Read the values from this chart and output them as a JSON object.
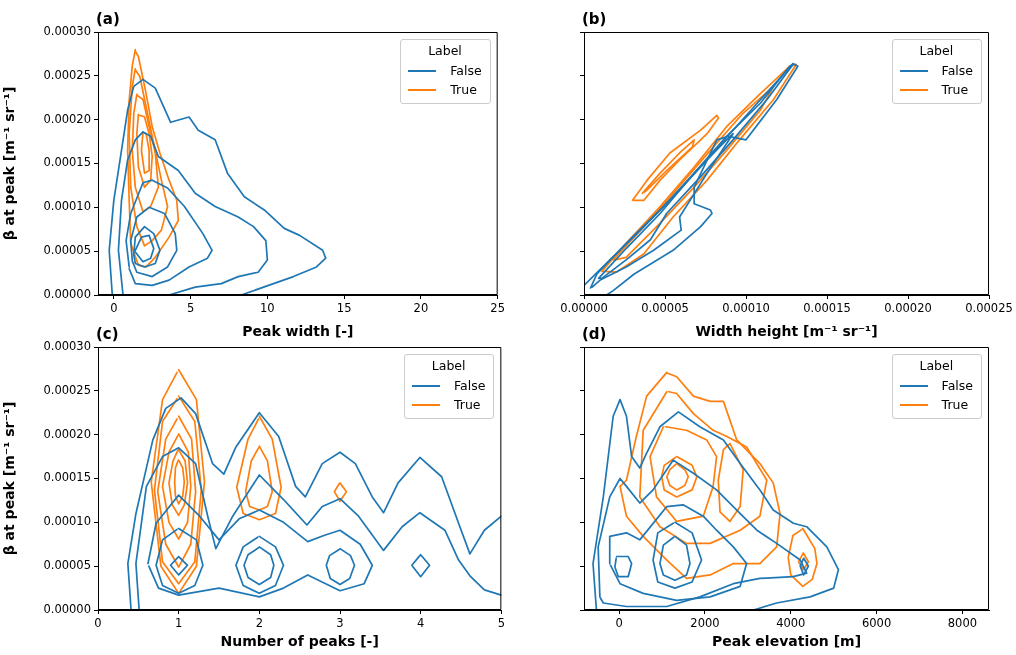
{
  "chart_data": [
    {
      "type": "line",
      "title": "(a)",
      "xlabel": "Peak width [-]",
      "ylabel": "β at peak [m⁻¹ sr⁻¹]",
      "legend": "top right",
      "legend_title": "Label",
      "marker": "none",
      "xlim": [
        -1.03,
        25
      ],
      "ylim": [
        0,
        0.0003
      ],
      "xticks": [
        0,
        5,
        10,
        15,
        20,
        25
      ],
      "yticks": [
        {
          "value": 0,
          "label": "0.00000"
        },
        {
          "value": 5e-05,
          "label": "0.00005"
        },
        {
          "value": 0.0001,
          "label": "0.00010"
        },
        {
          "value": 0.00015,
          "label": "0.00015"
        },
        {
          "value": 0.0002,
          "label": "0.00020"
        },
        {
          "value": 0.00025,
          "label": "0.00025"
        },
        {
          "value": 0.0003,
          "label": "0.00030"
        }
      ],
      "series": [
        {
          "name": "False",
          "color": "#1f77b4",
          "x": [
            -0.1,
            -0.3,
            0.0,
            0.5,
            0.9,
            1.3,
            1.9,
            2.7,
            3.7,
            4.9,
            5.5,
            6.6,
            7.4,
            8.5,
            9.8,
            11.1,
            12.1,
            13.6,
            13.8,
            13.2,
            11.7,
            10.4,
            8.3
          ],
          "values": [
            0,
            5.1e-05,
            0.000108,
            0.000165,
            0.000211,
            0.000238,
            0.000246,
            0.000236,
            0.000197,
            0.000203,
            0.000188,
            0.000177,
            0.000139,
            0.000112,
            9.7e-05,
            7.6e-05,
            6.8e-05,
            5.1e-05,
            4.2e-05,
            3.2e-05,
            2.1e-05,
            1.3e-05,
            0
          ]
        },
        {
          "color": "#1f77b4",
          "x": [
            0.6,
            0.3,
            0.5,
            0.9,
            1.4,
            1.9,
            2.4,
            2.9,
            4.2,
            5.3,
            6.6,
            8.1,
            9.1,
            9.9,
            10.0,
            9.4,
            8.1,
            7.0,
            5.3,
            3.6
          ],
          "values": [
            0,
            5.1e-05,
            0.000108,
            0.000154,
            0.000177,
            0.000186,
            0.000181,
            0.000158,
            0.000142,
            0.000116,
            0.000101,
            8.9e-05,
            7.8e-05,
            6.2e-05,
            4e-05,
            2.6e-05,
            2.1e-05,
            1.3e-05,
            9e-06,
            0
          ]
        },
        {
          "color": "#1f77b4",
          "x": [
            1.0,
            0.8,
            1.1,
            1.9,
            2.5,
            3.5,
            4.6,
            5.8,
            6.4,
            6.1,
            4.9,
            3.6,
            2.5,
            1.4,
            1.0
          ],
          "values": [
            3.2e-05,
            6.2e-05,
            9.3e-05,
            0.000128,
            0.000131,
            0.000122,
            0.000101,
            7e-05,
            5.1e-05,
            4.2e-05,
            3.2e-05,
            1.7e-05,
            1.1e-05,
            1.3e-05,
            3e-05
          ]
        },
        {
          "color": "#1f77b4",
          "x": [
            1.2,
            1.1,
            1.5,
            2.3,
            3.3,
            4.0,
            4.1,
            3.5,
            2.5,
            1.5,
            1.2
          ],
          "values": [
            4e-05,
            6.2e-05,
            8.9e-05,
            0.0001,
            9.3e-05,
            7e-05,
            5.1e-05,
            3.2e-05,
            2.1e-05,
            2.6e-05,
            3.9e-05
          ]
        },
        {
          "color": "#1f77b4",
          "x": [
            1.3,
            1.4,
            2.0,
            2.6,
            3.0,
            2.7,
            2.0,
            1.4,
            1.3
          ],
          "values": [
            4.7e-05,
            6.6e-05,
            7.8e-05,
            7e-05,
            5.1e-05,
            3.6e-05,
            3.2e-05,
            3.6e-05,
            4.6e-05
          ]
        },
        {
          "color": "#1f77b4",
          "x": [
            1.4,
            1.8,
            2.3,
            2.6,
            2.4,
            1.9,
            1.4
          ],
          "values": [
            5.1e-05,
            6.6e-05,
            6.8e-05,
            5.3e-05,
            4.2e-05,
            3.8e-05,
            4.9e-05
          ]
        },
        {
          "name": "True",
          "color": "#ff7f0e",
          "x": [
            1.4,
            1.2,
            1.0,
            0.9,
            1.0,
            1.1,
            1.6,
            2.1,
            2.7,
            3.6,
            4.2,
            4.1,
            3.6,
            3.0,
            2.5,
            2.1,
            1.6,
            1.4
          ],
          "values": [
            0.00028,
            0.000261,
            0.000222,
            0.000165,
            0.000108,
            5.9e-05,
            3.4e-05,
            3.2e-05,
            4.3e-05,
            6.6e-05,
            8.5e-05,
            0.000108,
            0.000131,
            0.000162,
            0.000192,
            0.00023,
            0.000272,
            0.000278
          ]
        },
        {
          "color": "#ff7f0e",
          "x": [
            1.4,
            1.2,
            1.0,
            1.1,
            1.5,
            2.0,
            2.5,
            3.1,
            3.5,
            3.1,
            2.6,
            2.1,
            1.7,
            1.4
          ],
          "values": [
            0.000258,
            0.000238,
            0.000184,
            0.000123,
            7.8e-05,
            5.6e-05,
            6.2e-05,
            7.4e-05,
            0.000101,
            0.000131,
            0.000173,
            0.000215,
            0.000249,
            0.000257
          ]
        },
        {
          "color": "#ff7f0e",
          "x": [
            1.5,
            1.3,
            1.2,
            1.4,
            1.9,
            2.4,
            2.9,
            2.7,
            2.3,
            1.9,
            1.5
          ],
          "values": [
            0.000229,
            0.000207,
            0.000165,
            0.000123,
            9.5e-05,
            0.000101,
            0.000123,
            0.000162,
            0.000192,
            0.000223,
            0.000228
          ]
        },
        {
          "color": "#ff7f0e",
          "x": [
            1.6,
            1.5,
            1.6,
            2.0,
            2.4,
            2.5,
            2.3,
            2.0,
            1.7
          ],
          "values": [
            0.000206,
            0.000184,
            0.000146,
            0.000123,
            0.000131,
            0.000158,
            0.000184,
            0.000203,
            0.000205
          ]
        },
        {
          "color": "#ff7f0e",
          "x": [
            1.9,
            1.8,
            2.0,
            2.3,
            2.3,
            2.1,
            2.0
          ],
          "values": [
            0.000186,
            0.000165,
            0.000139,
            0.000142,
            0.000165,
            0.000184,
            0.000185
          ]
        }
      ]
    },
    {
      "type": "line",
      "title": "(b)",
      "xlabel": "Width height [m⁻¹ sr⁻¹]",
      "legend": "top right",
      "legend_title": "Label",
      "marker": "none",
      "tick_labels": "x",
      "xlim": [
        0,
        0.00025
      ],
      "ylim": [
        0,
        0.0003
      ],
      "xticks": [
        {
          "value": 0,
          "label": "0.00000"
        },
        {
          "value": 5e-05,
          "label": "0.00005"
        },
        {
          "value": 0.0001,
          "label": "0.00010"
        },
        {
          "value": 0.00015,
          "label": "0.00015"
        },
        {
          "value": 0.0002,
          "label": "0.00020"
        },
        {
          "value": 0.00025,
          "label": "0.00025"
        }
      ],
      "yticks": [
        0,
        5e-05,
        0.0001,
        0.00015,
        0.0002,
        0.00025,
        0.0003
      ],
      "series": [
        {
          "name": "False",
          "color": "#1f77b4",
          "x": [
            0,
            1.6e-05,
            3.7e-05,
            5.3e-05,
            7.2e-05,
            9e-05,
            0.000109,
            0.000129,
            0.000132,
            0.000119,
            0.0001,
            8.9e-05,
            8.2e-05,
            6.8e-05,
            6.8e-05,
            7.8e-05,
            7.9e-05,
            7.2e-05,
            5.5e-05,
            3.1e-05,
            1.8e-05,
            1.4e-05
          ],
          "values": [
            1.1e-05,
            4e-05,
            7.8e-05,
            0.000108,
            0.000146,
            0.000184,
            0.000223,
            0.000264,
            0.000261,
            0.000223,
            0.000177,
            0.000181,
            0.000177,
            0.000123,
            0.000104,
            9.7e-05,
            9.3e-05,
            7.8e-05,
            5.1e-05,
            2.4e-05,
            5e-06,
            0
          ]
        },
        {
          "color": "#1f77b4",
          "x": [
            4e-06,
            8e-06,
            2.6e-05,
            4.7e-05,
            6.8e-05,
            8.8e-05,
            9.2e-05,
            7.6e-05,
            5.9e-05,
            6e-05,
            4.3e-05,
            2.6e-05,
            1e-05,
            5e-06
          ],
          "values": [
            8e-06,
            2.4e-05,
            5.9e-05,
            9.7e-05,
            0.000139,
            0.000177,
            0.000184,
            0.000139,
            8.9e-05,
            7.4e-05,
            5.1e-05,
            3.2e-05,
            1.7e-05,
            9e-06
          ]
        },
        {
          "color": "#1f77b4",
          "x": [
            9e-06,
            2.6e-05,
            4.7e-05,
            6.8e-05,
            8.8e-05,
            0.000109,
            0.000127,
            0.000129,
            0.000113,
            9.2e-05,
            7.2e-05,
            5.1e-05,
            4.1e-05,
            2.6e-05,
            1.1e-05,
            1e-05
          ],
          "values": [
            1.9e-05,
            5.3e-05,
            9.3e-05,
            0.000139,
            0.000181,
            0.000219,
            0.000261,
            0.000263,
            0.000223,
            0.000177,
            0.000135,
            9.3e-05,
            6.3e-05,
            4e-05,
            1.9e-05,
            1.9e-05
          ]
        },
        {
          "name": "True",
          "color": "#ff7f0e",
          "x": [
            1.1e-05,
            2.6e-05,
            4.7e-05,
            6.8e-05,
            8.8e-05,
            0.000109,
            0.000127,
            0.000131,
            0.000117,
            9.6e-05,
            7.6e-05,
            5.5e-05,
            3.7e-05,
            2e-05,
            1.2e-05
          ],
          "values": [
            2.7e-05,
            5.9e-05,
            0.000101,
            0.000146,
            0.000192,
            0.00023,
            0.000261,
            0.000263,
            0.000223,
            0.000177,
            0.000131,
            8.9e-05,
            4.7e-05,
            2.6e-05,
            2.7e-05
          ]
        },
        {
          "color": "#ff7f0e",
          "x": [
            1.8e-05,
            3.7e-05,
            5.7e-05,
            7.8e-05,
            9.8e-05,
            0.000117,
            0.000109,
            8.8e-05,
            6.8e-05,
            4.7e-05,
            2.6e-05,
            1.9e-05
          ],
          "values": [
            4e-05,
            7.8e-05,
            0.00012,
            0.000165,
            0.000207,
            0.000238,
            0.000211,
            0.000165,
            0.000123,
            8.2e-05,
            4.3e-05,
            4e-05
          ]
        },
        {
          "color": "#ff7f0e",
          "x": [
            3e-05,
            3.9e-05,
            5.3e-05,
            7.2e-05,
            8.2e-05,
            8.3e-05,
            7.6e-05,
            5.9e-05,
            4.7e-05,
            3.7e-05,
            3.1e-05
          ],
          "values": [
            0.000108,
            0.000131,
            0.000162,
            0.000188,
            0.000205,
            0.000202,
            0.000184,
            0.000154,
            0.000131,
            0.000108,
            0.000108
          ]
        },
        {
          "color": "#ff7f0e",
          "x": [
            3.6e-05,
            4.7e-05,
            5.9e-05,
            6.8e-05,
            6.7e-05,
            5.1e-05,
            3.9e-05,
            3.7e-05
          ],
          "values": [
            0.000116,
            0.000139,
            0.000162,
            0.000177,
            0.000169,
            0.000142,
            0.00012,
            0.000117
          ]
        }
      ]
    },
    {
      "type": "line",
      "title": "(c)",
      "xlabel": "Number of peaks [-]",
      "ylabel": "β at peak [m⁻¹ sr⁻¹]",
      "legend": "top right",
      "legend_title": "Label",
      "marker": "none",
      "xlim": [
        0,
        5
      ],
      "ylim": [
        0,
        0.0003
      ],
      "xticks": [
        0,
        1,
        2,
        3,
        4,
        5
      ],
      "yticks": [
        {
          "value": 0,
          "label": "0.00000"
        },
        {
          "value": 5e-05,
          "label": "0.00005"
        },
        {
          "value": 0.0001,
          "label": "0.00010"
        },
        {
          "value": 0.00015,
          "label": "0.00015"
        },
        {
          "value": 0.0002,
          "label": "0.00020"
        },
        {
          "value": 0.00025,
          "label": "0.00025"
        },
        {
          "value": 0.0003,
          "label": "0.00030"
        }
      ],
      "series": [
        {
          "name": "False",
          "color": "#1f77b4",
          "x": [
            0.41,
            0.37,
            0.47,
            0.68,
            0.84,
            1.03,
            1.21,
            1.42,
            1.56,
            1.71,
            2.0,
            2.24,
            2.45,
            2.57,
            2.78,
            3.0,
            3.19,
            3.4,
            3.54,
            3.72,
            3.99,
            4.26,
            4.47,
            4.61,
            4.79,
            5.0
          ],
          "values": [
            0,
            5.3e-05,
            0.00011,
            0.000194,
            0.00023,
            0.000242,
            0.000224,
            0.000167,
            0.000155,
            0.000186,
            0.000225,
            0.000198,
            0.000141,
            0.000129,
            0.000167,
            0.00018,
            0.000167,
            0.000129,
            0.000111,
            0.000145,
            0.000174,
            0.000152,
            9.9e-05,
            6.4e-05,
            9.1e-05,
            0.000107
          ]
        },
        {
          "color": "#1f77b4",
          "x": [
            0.51,
            0.47,
            0.6,
            0.8,
            1.0,
            1.21,
            1.36,
            1.46,
            1.67,
            2.0,
            2.3,
            2.59,
            2.78,
            3.0,
            3.23,
            3.54,
            3.77,
            3.99,
            4.3,
            4.47,
            4.61,
            4.79,
            5.0
          ],
          "values": [
            0,
            5.3e-05,
            0.000141,
            0.000175,
            0.000185,
            0.000167,
            0.000107,
            7e-05,
            0.000107,
            0.000154,
            0.000126,
            9.7e-05,
            0.000118,
            0.000127,
            0.000107,
            6.8e-05,
            9.5e-05,
            0.000111,
            9.1e-05,
            5.7e-05,
            3.9e-05,
            2.3e-05,
            1.7e-05
          ]
        },
        {
          "color": "#1f77b4",
          "x": [
            0.62,
            0.72,
            1.0,
            1.26,
            1.5,
            1.75,
            2.0,
            2.3,
            2.6,
            2.8,
            3.0,
            3.25,
            3.4,
            3.3,
            3.0,
            2.6,
            2.3,
            2.0,
            1.5,
            1.0,
            0.75,
            0.63
          ],
          "values": [
            5.3e-05,
            9.9e-05,
            0.000131,
            0.000107,
            8e-05,
            0.000104,
            0.000114,
            0.0001,
            7.8e-05,
            8.5e-05,
            9.1e-05,
            7.5e-05,
            5.1e-05,
            3e-05,
            2.2e-05,
            4e-05,
            2.5e-05,
            1.5e-05,
            2.5e-05,
            1.7e-05,
            2.5e-05,
            5e-05
          ]
        },
        {
          "color": "#1f77b4",
          "x": [
            1.0,
            1.22,
            1.3,
            1.2,
            1.0,
            0.8,
            0.72,
            0.8,
            0.98
          ],
          "values": [
            9.3e-05,
            8e-05,
            5.1e-05,
            2.8e-05,
            1.9e-05,
            2.8e-05,
            5.1e-05,
            8e-05,
            9.2e-05
          ]
        },
        {
          "color": "#1f77b4",
          "x": [
            1.0,
            1.11,
            1.0,
            0.9,
            0.99
          ],
          "values": [
            6.1e-05,
            5.1e-05,
            4e-05,
            5.1e-05,
            6e-05
          ]
        },
        {
          "color": "#1f77b4",
          "x": [
            2.0,
            2.2,
            2.3,
            2.2,
            2.0,
            1.8,
            1.71,
            1.8,
            1.98
          ],
          "values": [
            8.4e-05,
            7.2e-05,
            5.1e-05,
            2.8e-05,
            1.9e-05,
            2.8e-05,
            5.1e-05,
            7.2e-05,
            8.3e-05
          ]
        },
        {
          "color": "#1f77b4",
          "x": [
            2.0,
            2.14,
            2.18,
            2.14,
            2.0,
            1.86,
            1.81,
            1.86,
            1.99
          ],
          "values": [
            7.2e-05,
            6.3e-05,
            5.1e-05,
            3.7e-05,
            2.9e-05,
            3.7e-05,
            5.1e-05,
            6.3e-05,
            7.1e-05
          ]
        },
        {
          "color": "#1f77b4",
          "x": [
            3.0,
            3.13,
            3.18,
            3.12,
            3.0,
            2.88,
            2.83,
            2.87,
            2.99
          ],
          "values": [
            7e-05,
            6.2e-05,
            5.1e-05,
            3.6e-05,
            2.9e-05,
            3.6e-05,
            5.1e-05,
            6.2e-05,
            6.9e-05
          ]
        },
        {
          "color": "#1f77b4",
          "x": [
            4.0,
            4.11,
            4.0,
            3.89,
            3.99
          ],
          "values": [
            6.3e-05,
            5.1e-05,
            3.8e-05,
            5.1e-05,
            6.2e-05
          ]
        },
        {
          "name": "True",
          "color": "#ff7f0e",
          "x": [
            1.0,
            1.22,
            1.32,
            1.22,
            1.0,
            0.78,
            0.66,
            0.8,
            0.98
          ],
          "values": [
            0.000274,
            0.00024,
            0.000146,
            5e-05,
            1.9e-05,
            5e-05,
            0.000146,
            0.00024,
            0.000271
          ]
        },
        {
          "color": "#ff7f0e",
          "x": [
            1.0,
            1.2,
            1.28,
            1.2,
            1.0,
            0.8,
            0.7,
            0.8,
            0.98
          ],
          "values": [
            0.000244,
            0.000215,
            0.000137,
            5.5e-05,
            3e-05,
            5.5e-05,
            0.000137,
            0.000215,
            0.000241
          ]
        },
        {
          "color": "#ff7f0e",
          "x": [
            1.0,
            1.16,
            1.21,
            1.15,
            1.0,
            0.84,
            0.74,
            0.84,
            0.98
          ],
          "values": [
            0.000221,
            0.000195,
            0.000135,
            7.5e-05,
            4.9e-05,
            7.5e-05,
            0.000135,
            0.000195,
            0.000218
          ]
        },
        {
          "color": "#ff7f0e",
          "x": [
            1.0,
            1.12,
            1.15,
            1.11,
            1.0,
            0.88,
            0.8,
            0.88,
            0.99
          ],
          "values": [
            0.000201,
            0.00018,
            0.000141,
            0.0001,
            8.1e-05,
            0.0001,
            0.000141,
            0.00018,
            0.000199
          ]
        },
        {
          "color": "#ff7f0e",
          "x": [
            1.0,
            1.08,
            1.11,
            1.07,
            1.0,
            0.92,
            0.88,
            0.93,
            0.99
          ],
          "values": [
            0.000183,
            0.00017,
            0.000145,
            0.00012,
            0.000108,
            0.00012,
            0.000145,
            0.00017,
            0.000182
          ]
        },
        {
          "color": "#ff7f0e",
          "x": [
            1.0,
            1.05,
            1.07,
            1.05,
            1.0,
            0.96,
            0.95,
            0.96,
            0.99
          ],
          "values": [
            0.000171,
            0.000162,
            0.000146,
            0.00013,
            0.000121,
            0.00013,
            0.000146,
            0.000162,
            0.00017
          ]
        },
        {
          "color": "#ff7f0e",
          "x": [
            2.0,
            2.16,
            2.27,
            2.2,
            2.0,
            1.8,
            1.72,
            1.86,
            1.99
          ],
          "values": [
            0.000221,
            0.000195,
            0.00014,
            0.00011,
            0.000103,
            0.00011,
            0.00014,
            0.000195,
            0.000218
          ]
        },
        {
          "color": "#ff7f0e",
          "x": [
            2.0,
            2.1,
            2.16,
            2.1,
            2.0,
            1.88,
            1.83,
            1.9,
            1.99
          ],
          "values": [
            0.000187,
            0.00017,
            0.000135,
            0.000118,
            0.000114,
            0.000118,
            0.000135,
            0.00017,
            0.000185
          ]
        },
        {
          "color": "#ff7f0e",
          "x": [
            3.0,
            3.08,
            3.0,
            2.93,
            2.99
          ],
          "values": [
            0.000145,
            0.000135,
            0.000124,
            0.000135,
            0.000144
          ]
        }
      ]
    },
    {
      "type": "line",
      "title": "(d)",
      "xlabel": "Peak elevation [m]",
      "legend": "top right",
      "legend_title": "Label",
      "marker": "none",
      "tick_labels": "x",
      "xlim": [
        -820,
        8620
      ],
      "ylim": [
        0,
        0.0003
      ],
      "xticks": [
        0,
        2000,
        4000,
        6000,
        8000
      ],
      "yticks": [
        0,
        5e-05,
        0.0001,
        0.00015,
        0.0002,
        0.00025,
        0.0003
      ],
      "series": [
        {
          "name": "False",
          "color": "#1f77b4",
          "x": [
            -530,
            -610,
            -370,
            -140,
            20,
            170,
            290,
            480,
            640,
            950,
            1380,
            1880,
            2430,
            2820,
            3280,
            3590,
            4060,
            4370,
            4840,
            5110,
            5000,
            4450,
            3670,
            3130
          ],
          "values": [
            0,
            5.3e-05,
            0.000129,
            0.000221,
            0.00024,
            0.000221,
            0.000175,
            0.000162,
            0.000179,
            0.000209,
            0.000226,
            0.000209,
            0.000194,
            0.000167,
            0.000137,
            0.000114,
            9.9e-05,
            9.5e-05,
            7.2e-05,
            4.6e-05,
            2.5e-05,
            1.5e-05,
            8e-06,
            0
          ]
        },
        {
          "color": "#1f77b4",
          "x": [
            -450,
            -490,
            -220,
            20,
            170,
            480,
            790,
            1260,
            1730,
            2270,
            2740,
            3210,
            3670,
            4220,
            4370,
            4060,
            3280,
            2660,
            1880,
            1110,
            170,
            -370,
            -440
          ],
          "values": [
            1.5e-05,
            7.2e-05,
            0.000129,
            0.00015,
            0.000141,
            0.000122,
            0.000137,
            0.000171,
            0.000156,
            0.000137,
            0.000114,
            9.1e-05,
            7.6e-05,
            5.7e-05,
            4.2e-05,
            3.8e-05,
            3.6e-05,
            3e-05,
            1.5e-05,
            4e-06,
            4e-06,
            8e-06,
            1.4e-05
          ]
        },
        {
          "color": "#1f77b4",
          "x": [
            -220,
            -220,
            170,
            480,
            1110,
            1490,
            1960,
            2270,
            2660,
            2970,
            2820,
            2120,
            1340,
            560,
            20,
            -200
          ],
          "values": [
            5.3e-05,
            8.4e-05,
            8.8e-05,
            8e-05,
            0.000118,
            0.00012,
            0.000107,
            9.1e-05,
            7.2e-05,
            5.3e-05,
            2.7e-05,
            1.5e-05,
            1.1e-05,
            1.9e-05,
            3e-05,
            5.1e-05
          ]
        },
        {
          "color": "#1f77b4",
          "x": [
            -60,
            210,
            290,
            210,
            -20,
            -100,
            -70
          ],
          "values": [
            6.1e-05,
            6.1e-05,
            5.3e-05,
            3.8e-05,
            3.8e-05,
            4.9e-05,
            5.9e-05
          ]
        },
        {
          "color": "#1f77b4",
          "x": [
            1300,
            1570,
            1650,
            1570,
            1300,
            1030,
            950,
            1030,
            1270
          ],
          "values": [
            8.4e-05,
            7.4e-05,
            5.3e-05,
            4e-05,
            3.4e-05,
            4e-05,
            5.3e-05,
            7.4e-05,
            8.3e-05
          ]
        },
        {
          "color": "#1f77b4",
          "x": [
            1300,
            1700,
            1920,
            1700,
            1300,
            900,
            790,
            900,
            1260
          ],
          "values": [
            0.0001,
            8.8e-05,
            5.7e-05,
            3.2e-05,
            2.5e-05,
            3.2e-05,
            5.7e-05,
            8.8e-05,
            9.9e-05
          ]
        },
        {
          "color": "#1f77b4",
          "x": [
            4300,
            4410,
            4300,
            4220,
            4290
          ],
          "values": [
            5.9e-05,
            5e-05,
            4e-05,
            5e-05,
            5.8e-05
          ]
        },
        {
          "name": "True",
          "color": "#ff7f0e",
          "x": [
            1110,
            640,
            400,
            170,
            20,
            170,
            560,
            1110,
            1570,
            2120,
            2660,
            3280,
            3670,
            3750,
            3590,
            3280,
            2740,
            2430,
            2120,
            1730,
            1340,
            1130
          ],
          "values": [
            0.000271,
            0.000244,
            0.000198,
            0.000148,
            0.000141,
            0.000107,
            8.4e-05,
            5.7e-05,
            3.6e-05,
            4e-05,
            5.3e-05,
            5.3e-05,
            7.2e-05,
            0.00011,
            0.000145,
            0.000167,
            0.000194,
            0.000238,
            0.000238,
            0.000244,
            0.000266,
            0.00027
          ]
        },
        {
          "color": "#ff7f0e",
          "x": [
            1110,
            560,
            480,
            950,
            1570,
            2120,
            2820,
            3280,
            3440,
            2970,
            2510,
            2190,
            1730,
            1340,
            1160
          ],
          "values": [
            0.000249,
            0.000205,
            0.000129,
            9.5e-05,
            7.6e-05,
            7.6e-05,
            9.1e-05,
            0.000107,
            0.000148,
            0.000186,
            0.000198,
            0.000205,
            0.000224,
            0.000247,
            0.000249
          ]
        },
        {
          "color": "#ff7f0e",
          "x": [
            1030,
            720,
            870,
            1340,
            1960,
            2190,
            2270,
            2040,
            1570,
            1080
          ],
          "values": [
            0.000209,
            0.000175,
            0.000129,
            0.000101,
            0.000107,
            0.000141,
            0.000175,
            0.000194,
            0.000205,
            0.000209
          ]
        },
        {
          "color": "#ff7f0e",
          "x": [
            1340,
            1700,
            1810,
            1700,
            1340,
            1050,
            990,
            1050,
            1310
          ],
          "values": [
            0.000175,
            0.000165,
            0.000152,
            0.000137,
            0.000129,
            0.000137,
            0.000152,
            0.000165,
            0.000174
          ]
        },
        {
          "color": "#ff7f0e",
          "x": [
            1340,
            1530,
            1610,
            1530,
            1340,
            1180,
            1110,
            1180,
            1320
          ],
          "values": [
            0.000167,
            0.00016,
            0.000152,
            0.000142,
            0.000137,
            0.000142,
            0.000152,
            0.00016,
            0.000166
          ]
        },
        {
          "color": "#ff7f0e",
          "x": [
            2580,
            2890,
            2820,
            2580,
            2350,
            2310,
            2430,
            2560
          ],
          "values": [
            0.00019,
            0.00016,
            0.000118,
            0.000101,
            0.000112,
            0.000148,
            0.000183,
            0.000189
          ]
        },
        {
          "color": "#ff7f0e",
          "x": [
            4280,
            4560,
            4610,
            4500,
            4280,
            4000,
            3940,
            4050,
            4260
          ],
          "values": [
            9.3e-05,
            7e-05,
            5.3e-05,
            3.5e-05,
            2.7e-05,
            4e-05,
            6e-05,
            8.5e-05,
            9.2e-05
          ]
        },
        {
          "color": "#ff7f0e",
          "x": [
            4290,
            4410,
            4300,
            4180,
            4280
          ],
          "values": [
            6.5e-05,
            5.5e-05,
            4.6e-05,
            5.5e-05,
            6.4e-05
          ]
        }
      ]
    }
  ]
}
